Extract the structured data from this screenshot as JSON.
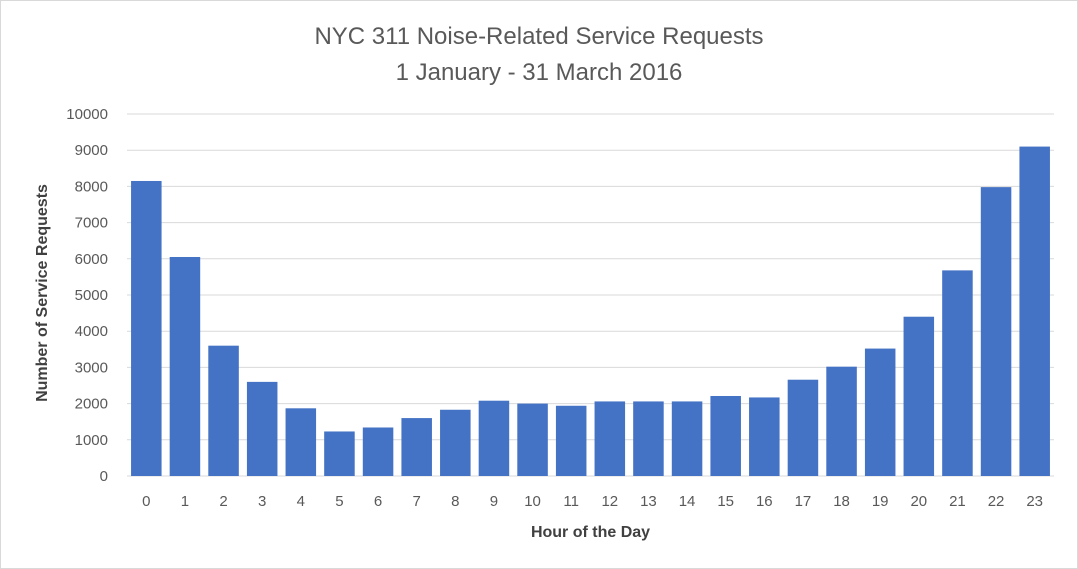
{
  "chart_data": {
    "type": "bar",
    "title": "NYC 311 Noise-Related Service Requests",
    "subtitle": "1 January - 31 March 2016",
    "xlabel": "Hour of the Day",
    "ylabel": "Number of Service Requests",
    "categories": [
      "0",
      "1",
      "2",
      "3",
      "4",
      "5",
      "6",
      "7",
      "8",
      "9",
      "10",
      "11",
      "12",
      "13",
      "14",
      "15",
      "16",
      "17",
      "18",
      "19",
      "20",
      "21",
      "22",
      "23"
    ],
    "values": [
      8150,
      6050,
      3600,
      2600,
      1870,
      1230,
      1340,
      1600,
      1830,
      2080,
      2000,
      1940,
      2060,
      2060,
      2060,
      2210,
      2170,
      2660,
      3020,
      3520,
      4400,
      5680,
      7980,
      9100
    ],
    "ylim": [
      0,
      10000
    ],
    "yticks": [
      0,
      1000,
      2000,
      3000,
      4000,
      5000,
      6000,
      7000,
      8000,
      9000,
      10000
    ],
    "grid": true,
    "legend": "none",
    "bar_color": "#4472c4",
    "grid_color": "#d9d9d9"
  }
}
